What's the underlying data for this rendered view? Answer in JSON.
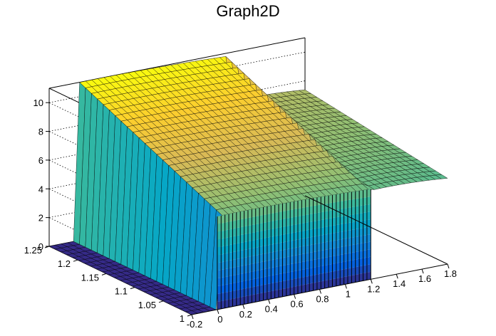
{
  "chart_data": {
    "type": "surface",
    "title": "Graph2D",
    "xlabel": "",
    "ylabel": "",
    "zlabel": "",
    "xlim": [
      -0.2,
      1.8
    ],
    "ylim": [
      1.0,
      1.25
    ],
    "zlim": [
      0,
      11
    ],
    "x_ticks": [
      "-0.2",
      "0",
      "0.2",
      "0.4",
      "0.6",
      "0.8",
      "1",
      "1.2",
      "1.4",
      "1.6",
      "1.8"
    ],
    "y_ticks": [
      "1",
      "1.05",
      "1.1",
      "1.15",
      "1.2",
      "1.25"
    ],
    "z_ticks": [
      "0",
      "2",
      "4",
      "6",
      "8",
      "10"
    ],
    "grid": true,
    "palette": [
      "#352a87",
      "#0363e1",
      "#1485d4",
      "#06a7c6",
      "#38b99e",
      "#92bf73",
      "#d9ba56",
      "#fcce2e",
      "#f9fb0e"
    ],
    "regions": [
      {
        "x_from": -0.2,
        "x_to": 0.0,
        "description": "z = 0"
      },
      {
        "x_from": 0.0,
        "x_to": 1.2,
        "z_at_y_min": 6.5,
        "z_at_y_max": 11.0
      },
      {
        "x_from": 1.2,
        "x_to": 1.8,
        "z_at_y_min": 6.2,
        "z_at_y_max": 7.6
      }
    ]
  }
}
